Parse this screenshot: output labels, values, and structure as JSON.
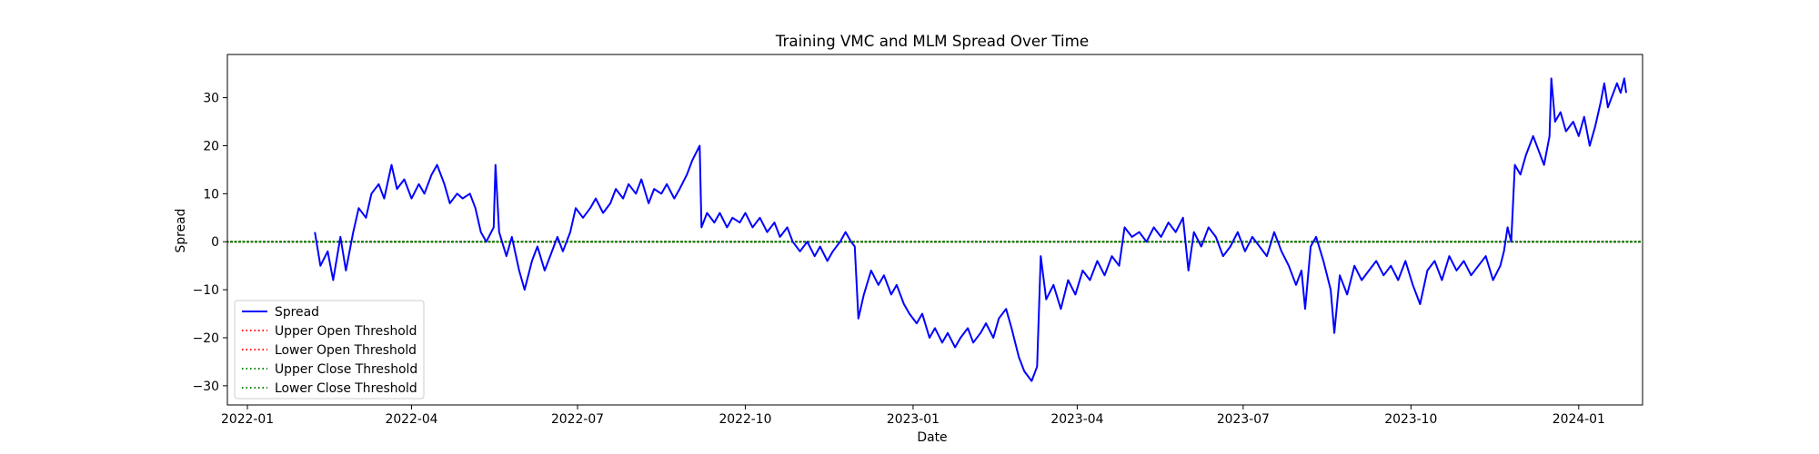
{
  "chart_data": {
    "type": "line",
    "title": "Training VMC and MLM Spread Over Time",
    "xlabel": "Date",
    "ylabel": "Spread",
    "x_range": [
      "2021-12-21",
      "2024-02-05"
    ],
    "ylim": [
      -34,
      39
    ],
    "x_ticks": [
      {
        "date": "2022-01-01",
        "label": "2022-01"
      },
      {
        "date": "2022-04-01",
        "label": "2022-04"
      },
      {
        "date": "2022-07-01",
        "label": "2022-07"
      },
      {
        "date": "2022-10-01",
        "label": "2022-10"
      },
      {
        "date": "2023-01-01",
        "label": "2023-01"
      },
      {
        "date": "2023-04-01",
        "label": "2023-04"
      },
      {
        "date": "2023-07-01",
        "label": "2023-07"
      },
      {
        "date": "2023-10-01",
        "label": "2023-10"
      },
      {
        "date": "2024-01-01",
        "label": "2024-01"
      }
    ],
    "y_ticks": [
      -30,
      -20,
      -10,
      0,
      10,
      20,
      30
    ],
    "grid": false,
    "legend_position": "lower-left",
    "series": [
      {
        "name": "Spread",
        "color": "#0000ff",
        "style": "solid",
        "points": [
          [
            "2022-02-07",
            2
          ],
          [
            "2022-02-10",
            -5
          ],
          [
            "2022-02-14",
            -2
          ],
          [
            "2022-02-17",
            -8
          ],
          [
            "2022-02-21",
            1
          ],
          [
            "2022-02-24",
            -6
          ],
          [
            "2022-02-28",
            2
          ],
          [
            "2022-03-03",
            7
          ],
          [
            "2022-03-07",
            5
          ],
          [
            "2022-03-10",
            10
          ],
          [
            "2022-03-14",
            12
          ],
          [
            "2022-03-17",
            9
          ],
          [
            "2022-03-21",
            16
          ],
          [
            "2022-03-24",
            11
          ],
          [
            "2022-03-28",
            13
          ],
          [
            "2022-04-01",
            9
          ],
          [
            "2022-04-05",
            12
          ],
          [
            "2022-04-08",
            10
          ],
          [
            "2022-04-12",
            14
          ],
          [
            "2022-04-15",
            16
          ],
          [
            "2022-04-19",
            12
          ],
          [
            "2022-04-22",
            8
          ],
          [
            "2022-04-26",
            10
          ],
          [
            "2022-04-29",
            9
          ],
          [
            "2022-05-03",
            10
          ],
          [
            "2022-05-06",
            7
          ],
          [
            "2022-05-09",
            2
          ],
          [
            "2022-05-12",
            0
          ],
          [
            "2022-05-16",
            3
          ],
          [
            "2022-05-17",
            16
          ],
          [
            "2022-05-19",
            2
          ],
          [
            "2022-05-23",
            -3
          ],
          [
            "2022-05-26",
            1
          ],
          [
            "2022-05-30",
            -6
          ],
          [
            "2022-06-02",
            -10
          ],
          [
            "2022-06-06",
            -4
          ],
          [
            "2022-06-09",
            -1
          ],
          [
            "2022-06-13",
            -6
          ],
          [
            "2022-06-16",
            -3
          ],
          [
            "2022-06-20",
            1
          ],
          [
            "2022-06-23",
            -2
          ],
          [
            "2022-06-27",
            2
          ],
          [
            "2022-06-30",
            7
          ],
          [
            "2022-07-04",
            5
          ],
          [
            "2022-07-08",
            7
          ],
          [
            "2022-07-11",
            9
          ],
          [
            "2022-07-15",
            6
          ],
          [
            "2022-07-19",
            8
          ],
          [
            "2022-07-22",
            11
          ],
          [
            "2022-07-26",
            9
          ],
          [
            "2022-07-29",
            12
          ],
          [
            "2022-08-02",
            10
          ],
          [
            "2022-08-05",
            13
          ],
          [
            "2022-08-09",
            8
          ],
          [
            "2022-08-12",
            11
          ],
          [
            "2022-08-16",
            10
          ],
          [
            "2022-08-19",
            12
          ],
          [
            "2022-08-23",
            9
          ],
          [
            "2022-08-26",
            11
          ],
          [
            "2022-08-30",
            14
          ],
          [
            "2022-09-02",
            17
          ],
          [
            "2022-09-06",
            20
          ],
          [
            "2022-09-07",
            3
          ],
          [
            "2022-09-10",
            6
          ],
          [
            "2022-09-14",
            4
          ],
          [
            "2022-09-17",
            6
          ],
          [
            "2022-09-21",
            3
          ],
          [
            "2022-09-24",
            5
          ],
          [
            "2022-09-28",
            4
          ],
          [
            "2022-10-01",
            6
          ],
          [
            "2022-10-05",
            3
          ],
          [
            "2022-10-09",
            5
          ],
          [
            "2022-10-13",
            2
          ],
          [
            "2022-10-17",
            4
          ],
          [
            "2022-10-20",
            1
          ],
          [
            "2022-10-24",
            3
          ],
          [
            "2022-10-27",
            0
          ],
          [
            "2022-10-31",
            -2
          ],
          [
            "2022-11-04",
            0
          ],
          [
            "2022-11-08",
            -3
          ],
          [
            "2022-11-11",
            -1
          ],
          [
            "2022-11-15",
            -4
          ],
          [
            "2022-11-18",
            -2
          ],
          [
            "2022-11-22",
            0
          ],
          [
            "2022-11-25",
            2
          ],
          [
            "2022-11-28",
            0
          ],
          [
            "2022-11-30",
            -1
          ],
          [
            "2022-12-02",
            -16
          ],
          [
            "2022-12-05",
            -11
          ],
          [
            "2022-12-09",
            -6
          ],
          [
            "2022-12-13",
            -9
          ],
          [
            "2022-12-16",
            -7
          ],
          [
            "2022-12-20",
            -11
          ],
          [
            "2022-12-23",
            -9
          ],
          [
            "2022-12-27",
            -13
          ],
          [
            "2022-12-30",
            -15
          ],
          [
            "2023-01-03",
            -17
          ],
          [
            "2023-01-06",
            -15
          ],
          [
            "2023-01-10",
            -20
          ],
          [
            "2023-01-13",
            -18
          ],
          [
            "2023-01-17",
            -21
          ],
          [
            "2023-01-20",
            -19
          ],
          [
            "2023-01-24",
            -22
          ],
          [
            "2023-01-27",
            -20
          ],
          [
            "2023-01-31",
            -18
          ],
          [
            "2023-02-03",
            -21
          ],
          [
            "2023-02-07",
            -19
          ],
          [
            "2023-02-10",
            -17
          ],
          [
            "2023-02-14",
            -20
          ],
          [
            "2023-02-17",
            -16
          ],
          [
            "2023-02-21",
            -14
          ],
          [
            "2023-02-24",
            -18
          ],
          [
            "2023-02-28",
            -24
          ],
          [
            "2023-03-03",
            -27
          ],
          [
            "2023-03-07",
            -29
          ],
          [
            "2023-03-10",
            -26
          ],
          [
            "2023-03-12",
            -3
          ],
          [
            "2023-03-15",
            -12
          ],
          [
            "2023-03-19",
            -9
          ],
          [
            "2023-03-23",
            -14
          ],
          [
            "2023-03-27",
            -8
          ],
          [
            "2023-03-31",
            -11
          ],
          [
            "2023-04-04",
            -6
          ],
          [
            "2023-04-08",
            -8
          ],
          [
            "2023-04-12",
            -4
          ],
          [
            "2023-04-16",
            -7
          ],
          [
            "2023-04-20",
            -3
          ],
          [
            "2023-04-24",
            -5
          ],
          [
            "2023-04-27",
            3
          ],
          [
            "2023-05-01",
            1
          ],
          [
            "2023-05-05",
            2
          ],
          [
            "2023-05-09",
            0
          ],
          [
            "2023-05-13",
            3
          ],
          [
            "2023-05-17",
            1
          ],
          [
            "2023-05-21",
            4
          ],
          [
            "2023-05-25",
            2
          ],
          [
            "2023-05-29",
            5
          ],
          [
            "2023-06-01",
            -6
          ],
          [
            "2023-06-04",
            2
          ],
          [
            "2023-06-08",
            -1
          ],
          [
            "2023-06-12",
            3
          ],
          [
            "2023-06-16",
            1
          ],
          [
            "2023-06-20",
            -3
          ],
          [
            "2023-06-24",
            -1
          ],
          [
            "2023-06-28",
            2
          ],
          [
            "2023-07-02",
            -2
          ],
          [
            "2023-07-06",
            1
          ],
          [
            "2023-07-10",
            -1
          ],
          [
            "2023-07-14",
            -3
          ],
          [
            "2023-07-18",
            2
          ],
          [
            "2023-07-22",
            -2
          ],
          [
            "2023-07-26",
            -5
          ],
          [
            "2023-07-30",
            -9
          ],
          [
            "2023-08-02",
            -6
          ],
          [
            "2023-08-04",
            -14
          ],
          [
            "2023-08-07",
            -1
          ],
          [
            "2023-08-10",
            1
          ],
          [
            "2023-08-14",
            -4
          ],
          [
            "2023-08-18",
            -10
          ],
          [
            "2023-08-20",
            -19
          ],
          [
            "2023-08-23",
            -7
          ],
          [
            "2023-08-27",
            -11
          ],
          [
            "2023-08-31",
            -5
          ],
          [
            "2023-09-04",
            -8
          ],
          [
            "2023-09-08",
            -6
          ],
          [
            "2023-09-12",
            -4
          ],
          [
            "2023-09-16",
            -7
          ],
          [
            "2023-09-20",
            -5
          ],
          [
            "2023-09-24",
            -8
          ],
          [
            "2023-09-28",
            -4
          ],
          [
            "2023-10-02",
            -9
          ],
          [
            "2023-10-06",
            -13
          ],
          [
            "2023-10-10",
            -6
          ],
          [
            "2023-10-14",
            -4
          ],
          [
            "2023-10-18",
            -8
          ],
          [
            "2023-10-22",
            -3
          ],
          [
            "2023-10-26",
            -6
          ],
          [
            "2023-10-30",
            -4
          ],
          [
            "2023-11-03",
            -7
          ],
          [
            "2023-11-07",
            -5
          ],
          [
            "2023-11-11",
            -3
          ],
          [
            "2023-11-15",
            -8
          ],
          [
            "2023-11-19",
            -5
          ],
          [
            "2023-11-21",
            -2
          ],
          [
            "2023-11-23",
            3
          ],
          [
            "2023-11-25",
            0
          ],
          [
            "2023-11-27",
            16
          ],
          [
            "2023-11-30",
            14
          ],
          [
            "2023-12-03",
            18
          ],
          [
            "2023-12-07",
            22
          ],
          [
            "2023-12-10",
            19
          ],
          [
            "2023-12-13",
            16
          ],
          [
            "2023-12-16",
            22
          ],
          [
            "2023-12-17",
            34
          ],
          [
            "2023-12-19",
            25
          ],
          [
            "2023-12-22",
            27
          ],
          [
            "2023-12-25",
            23
          ],
          [
            "2023-12-29",
            25
          ],
          [
            "2024-01-01",
            22
          ],
          [
            "2024-01-04",
            26
          ],
          [
            "2024-01-07",
            20
          ],
          [
            "2024-01-10",
            24
          ],
          [
            "2024-01-13",
            29
          ],
          [
            "2024-01-15",
            33
          ],
          [
            "2024-01-17",
            28
          ],
          [
            "2024-01-20",
            31
          ],
          [
            "2024-01-22",
            33
          ],
          [
            "2024-01-24",
            31
          ],
          [
            "2024-01-26",
            34
          ],
          [
            "2024-01-27",
            31
          ]
        ]
      },
      {
        "name": "Upper Open Threshold",
        "color": "#ff0000",
        "style": "dotted",
        "value": 0
      },
      {
        "name": "Lower Open Threshold",
        "color": "#ff0000",
        "style": "dotted",
        "value": 0
      },
      {
        "name": "Upper Close Threshold",
        "color": "#008000",
        "style": "dotted",
        "value": 0
      },
      {
        "name": "Lower Close Threshold",
        "color": "#008000",
        "style": "dotted",
        "value": 0
      }
    ]
  }
}
